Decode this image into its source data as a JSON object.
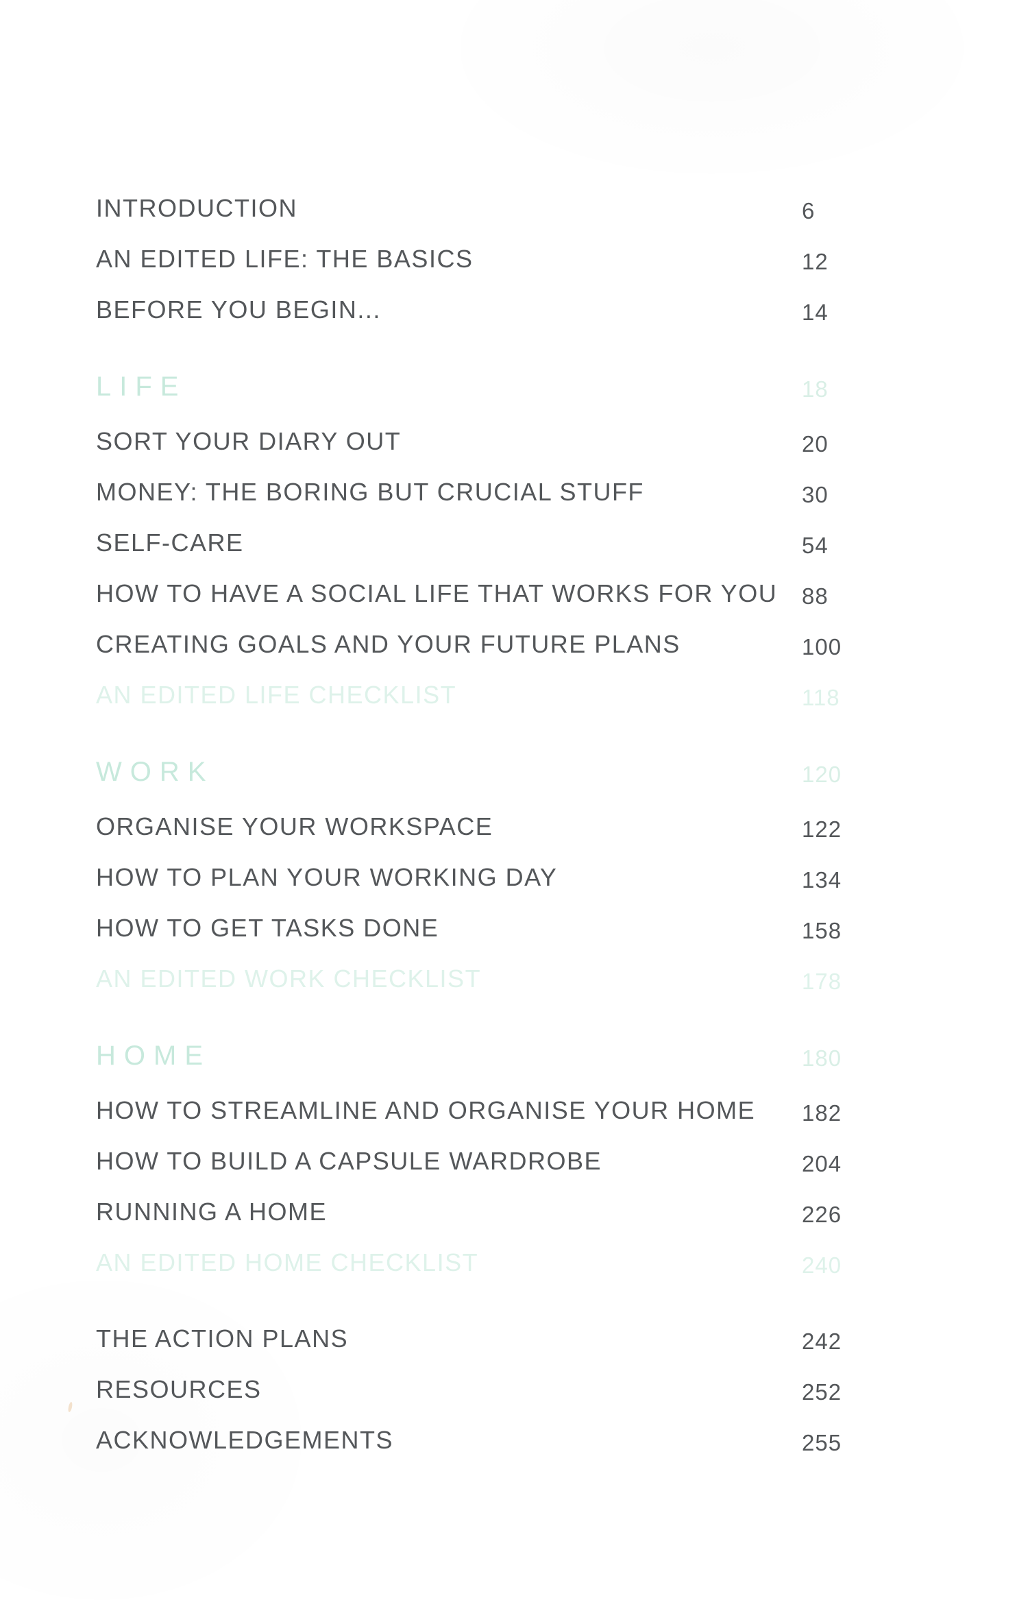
{
  "page": {
    "colors": {
      "background": "#ffffff",
      "text": "#54575a",
      "section": "#c7e9dc",
      "section_page": "#d9efe6",
      "checklist": "#def2ea"
    }
  },
  "toc": {
    "rows": [
      {
        "type": "entry",
        "label": "INTRODUCTION",
        "page": "6"
      },
      {
        "type": "entry",
        "label": "AN EDITED LIFE: THE BASICS",
        "page": "12"
      },
      {
        "type": "entry",
        "label": "BEFORE YOU BEGIN...",
        "page": "14"
      },
      {
        "type": "section",
        "label": "LIFE",
        "page": "18"
      },
      {
        "type": "entry",
        "label": "SORT YOUR DIARY OUT",
        "page": "20"
      },
      {
        "type": "entry",
        "label": "MONEY: THE BORING BUT CRUCIAL STUFF",
        "page": "30"
      },
      {
        "type": "entry",
        "label": "SELF-CARE",
        "page": "54"
      },
      {
        "type": "entry",
        "label": "HOW TO HAVE A SOCIAL LIFE THAT WORKS FOR YOU",
        "page": "88"
      },
      {
        "type": "entry",
        "label": "CREATING GOALS AND YOUR FUTURE PLANS",
        "page": "100"
      },
      {
        "type": "checklist",
        "label": "AN EDITED LIFE CHECKLIST",
        "page": "118"
      },
      {
        "type": "section",
        "label": "WORK",
        "page": "120"
      },
      {
        "type": "entry",
        "label": "ORGANISE YOUR WORKSPACE",
        "page": "122"
      },
      {
        "type": "entry",
        "label": "HOW TO PLAN YOUR WORKING DAY",
        "page": "134"
      },
      {
        "type": "entry",
        "label": "HOW TO GET TASKS DONE",
        "page": "158"
      },
      {
        "type": "checklist",
        "label": "AN EDITED WORK CHECKLIST",
        "page": "178"
      },
      {
        "type": "section",
        "label": "HOME",
        "page": "180"
      },
      {
        "type": "entry",
        "label": "HOW TO STREAMLINE AND ORGANISE YOUR HOME",
        "page": "182"
      },
      {
        "type": "entry",
        "label": "HOW TO BUILD A CAPSULE WARDROBE",
        "page": "204"
      },
      {
        "type": "entry",
        "label": "RUNNING A HOME",
        "page": "226"
      },
      {
        "type": "checklist",
        "label": "AN EDITED HOME CHECKLIST",
        "page": "240"
      },
      {
        "type": "entry",
        "label": "THE ACTION PLANS",
        "page": "242",
        "group_start": true
      },
      {
        "type": "entry",
        "label": "RESOURCES",
        "page": "252"
      },
      {
        "type": "entry",
        "label": "ACKNOWLEDGEMENTS",
        "page": "255"
      }
    ]
  }
}
